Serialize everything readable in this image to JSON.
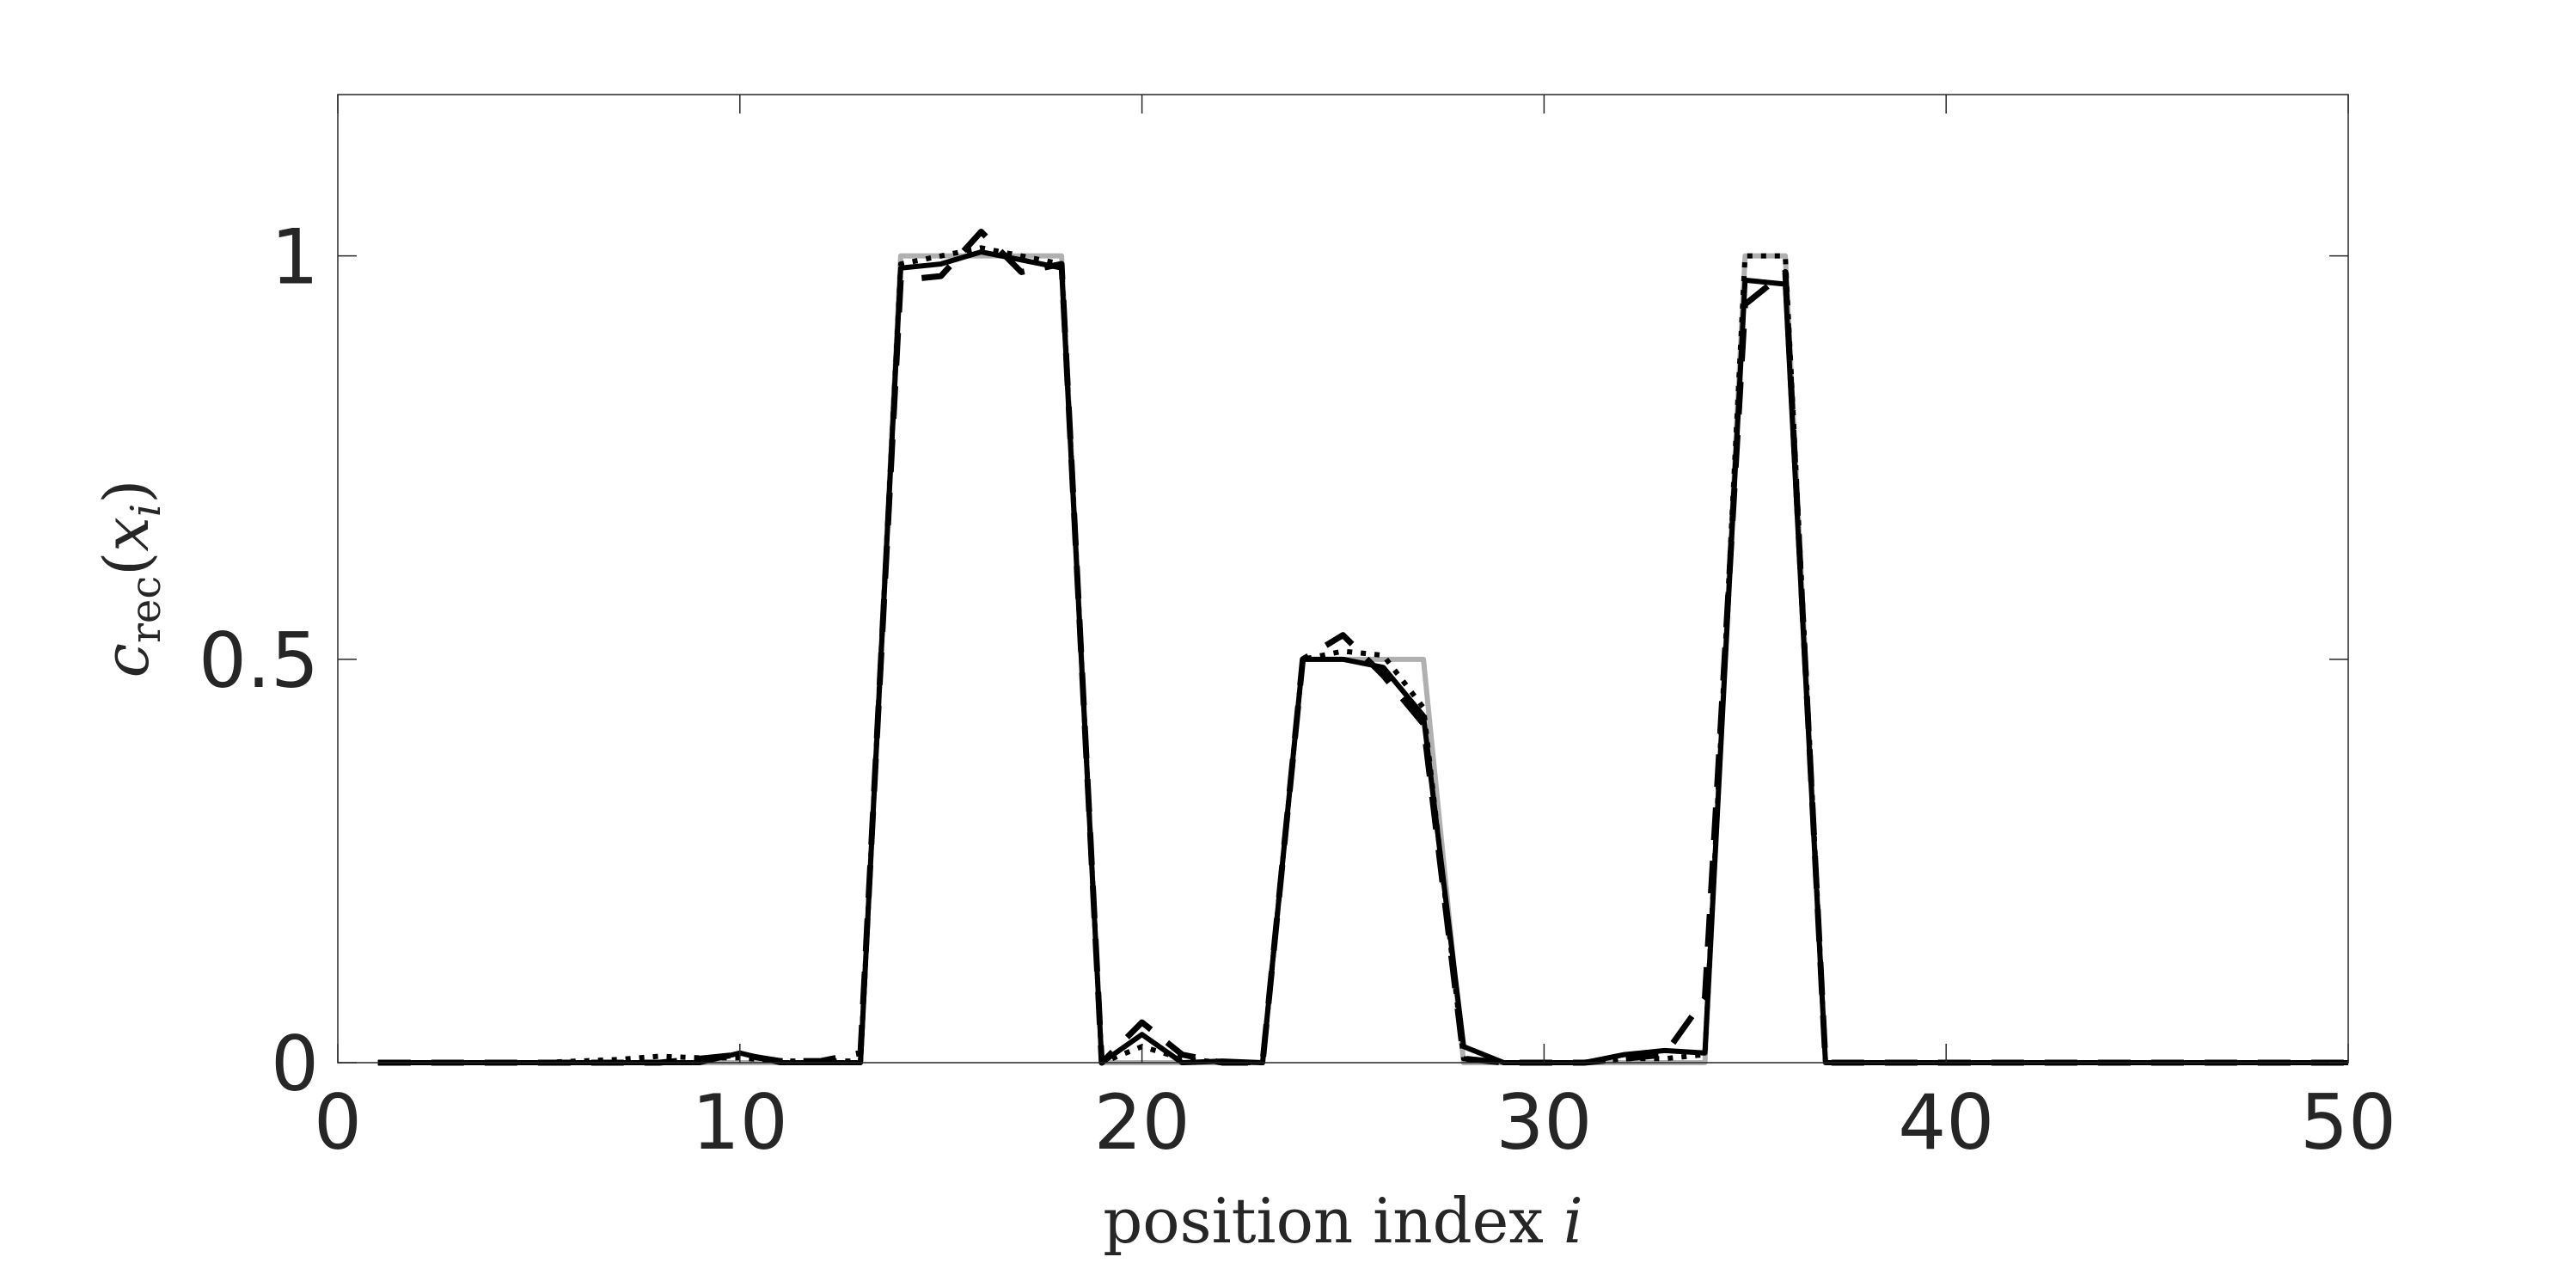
{
  "chart_data": {
    "type": "line",
    "xlabel": {
      "text": "position index ",
      "var": "i"
    },
    "ylabel": {
      "base": "c",
      "sub": "rec",
      "open": "(",
      "arg": "x",
      "argsub": "i",
      "close": ")"
    },
    "xlim": [
      0,
      50
    ],
    "ylim": [
      0,
      1.2
    ],
    "xticks": [
      0,
      10,
      20,
      30,
      40,
      50
    ],
    "xtick_labels": [
      "0",
      "10",
      "20",
      "30",
      "40",
      "50"
    ],
    "yticks": [
      0,
      0.5,
      1
    ],
    "ytick_labels": [
      "0",
      "0.5",
      "1"
    ],
    "grid": false,
    "legend": "none",
    "series": [
      {
        "style": "true",
        "color": "#b0b0b0",
        "x": [
          1,
          2,
          3,
          4,
          5,
          6,
          7,
          8,
          9,
          10,
          11,
          12,
          13,
          14,
          15,
          16,
          17,
          18,
          19,
          20,
          21,
          22,
          23,
          24,
          25,
          26,
          27,
          28,
          29,
          30,
          31,
          32,
          33,
          34,
          35,
          36,
          37,
          38,
          39,
          40,
          41,
          42,
          43,
          44,
          45,
          46,
          47,
          48,
          49,
          50
        ],
        "y": [
          0,
          0,
          0,
          0,
          0,
          0,
          0,
          0,
          0,
          0,
          0,
          0,
          0,
          1,
          1,
          1,
          1,
          1,
          0,
          0,
          0,
          0,
          0,
          0.5,
          0.5,
          0.5,
          0.5,
          0,
          0,
          0,
          0,
          0,
          0,
          0,
          1,
          1,
          0,
          0,
          0,
          0,
          0,
          0,
          0,
          0,
          0,
          0,
          0,
          0,
          0,
          0
        ]
      },
      {
        "style": "dotted",
        "color": "#000000",
        "x": [
          1,
          2,
          3,
          4,
          5,
          6,
          7,
          8,
          9,
          10,
          11,
          12,
          13,
          14,
          15,
          16,
          17,
          18,
          19,
          20,
          21,
          22,
          23,
          24,
          25,
          26,
          27,
          28,
          29,
          30,
          31,
          32,
          33,
          34,
          35,
          36,
          37,
          38,
          39,
          40,
          41,
          42,
          43,
          44,
          45,
          46,
          47,
          48,
          49,
          50
        ],
        "y": [
          0,
          0,
          0,
          0,
          0,
          0.002,
          0.004,
          0.008,
          0.006,
          0.006,
          0.002,
          0.002,
          0.002,
          0.99,
          1.0,
          1.01,
          1.0,
          0.99,
          0,
          0.02,
          0.005,
          0,
          0,
          0.5,
          0.51,
          0.505,
          0.44,
          0.005,
          0,
          0,
          0,
          0.005,
          0.005,
          0.01,
          1.0,
          1.0,
          0,
          0,
          0,
          0,
          0,
          0,
          0,
          0,
          0,
          0,
          0,
          0,
          0,
          0
        ]
      },
      {
        "style": "dashed",
        "color": "#000000",
        "x": [
          1,
          2,
          3,
          4,
          5,
          6,
          7,
          8,
          9,
          10,
          11,
          12,
          13,
          14,
          15,
          16,
          17,
          18,
          19,
          20,
          21,
          22,
          23,
          24,
          25,
          26,
          27,
          28,
          29,
          30,
          31,
          32,
          33,
          34,
          35,
          36,
          37,
          38,
          39,
          40,
          41,
          42,
          43,
          44,
          45,
          46,
          47,
          48,
          49,
          50
        ],
        "y": [
          0,
          0,
          0,
          0,
          0,
          0,
          0,
          0,
          0.005,
          0.01,
          0.002,
          0.002,
          0.012,
          0.97,
          0.975,
          1.03,
          0.98,
          0.99,
          0,
          0.05,
          0.01,
          0,
          0,
          0.5,
          0.53,
          0.48,
          0.42,
          0.005,
          0,
          0,
          0,
          0.005,
          0.01,
          0.08,
          0.94,
          0.98,
          0,
          0,
          0,
          0,
          0,
          0,
          0,
          0,
          0,
          0,
          0,
          0,
          0,
          0
        ]
      },
      {
        "style": "solid",
        "color": "#000000",
        "x": [
          1,
          2,
          3,
          4,
          5,
          6,
          7,
          8,
          9,
          10,
          11,
          12,
          13,
          14,
          15,
          16,
          17,
          18,
          19,
          20,
          21,
          22,
          23,
          24,
          25,
          26,
          27,
          28,
          29,
          30,
          31,
          32,
          33,
          34,
          35,
          36,
          37,
          38,
          39,
          40,
          41,
          42,
          43,
          44,
          45,
          46,
          47,
          48,
          49,
          50
        ],
        "y": [
          0,
          0,
          0,
          0,
          0,
          0,
          0,
          0,
          0,
          0.012,
          0,
          0,
          0,
          0.985,
          0.99,
          1.005,
          0.995,
          0.985,
          0,
          0.035,
          0,
          0.002,
          0,
          0.5,
          0.5,
          0.49,
          0.43,
          0.02,
          0,
          0,
          0,
          0.01,
          0.015,
          0.012,
          0.97,
          0.965,
          0,
          0,
          0,
          0,
          0,
          0,
          0,
          0,
          0,
          0,
          0,
          0,
          0,
          0
        ]
      }
    ]
  }
}
